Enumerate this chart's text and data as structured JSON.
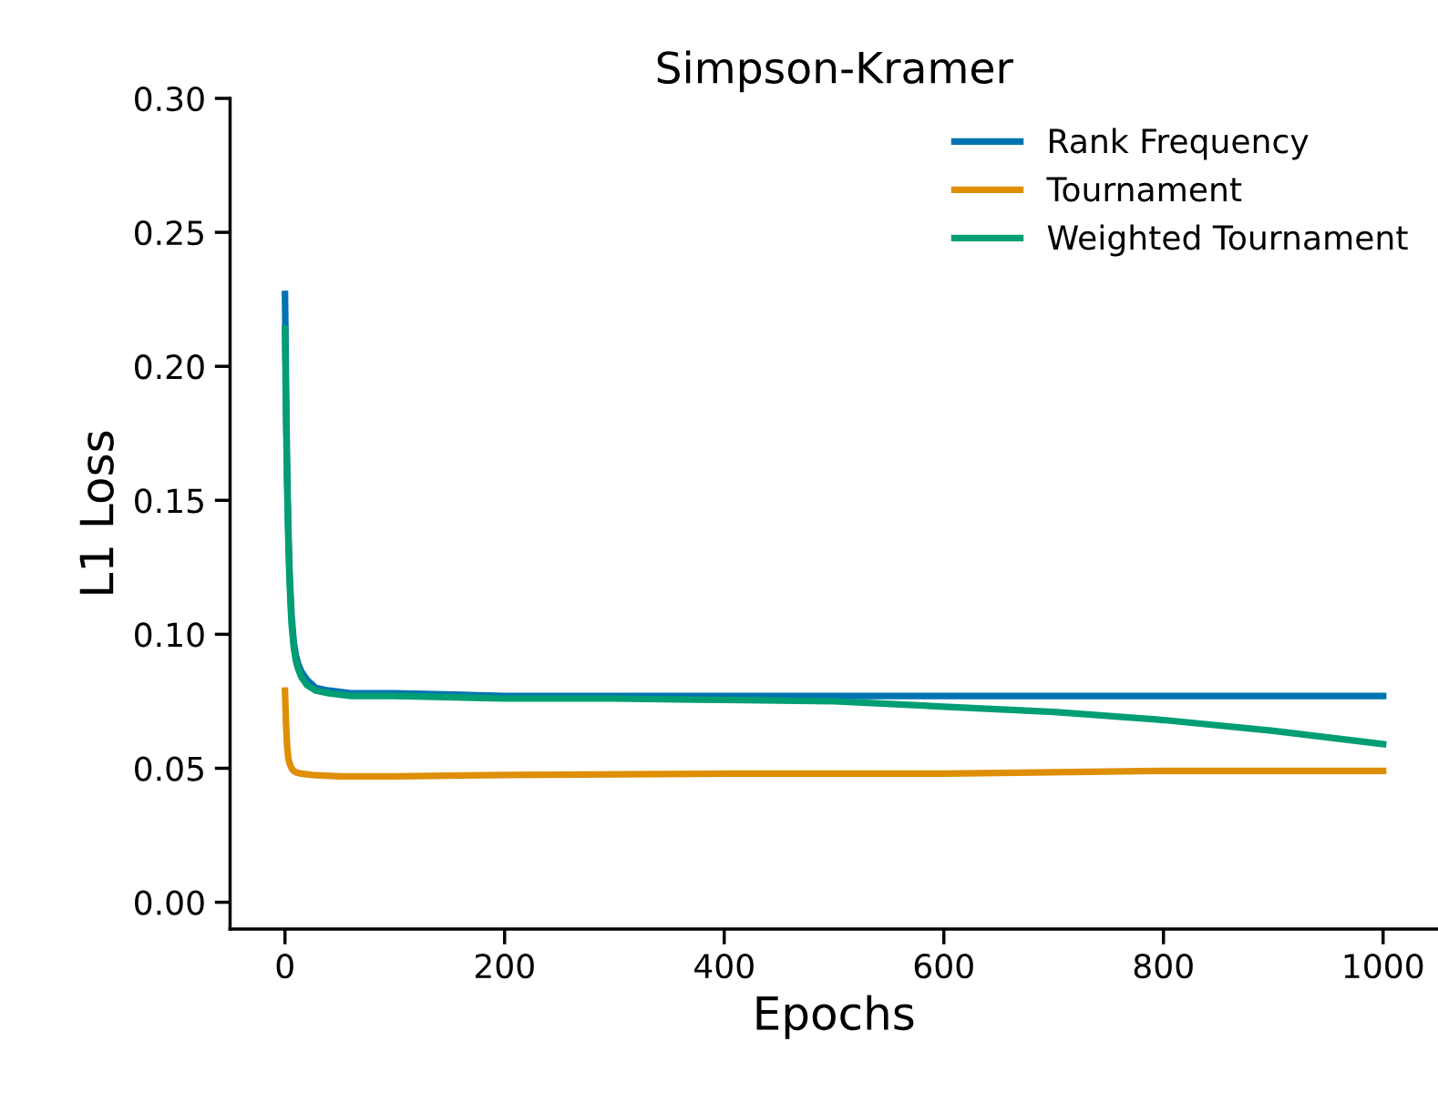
{
  "chart_data": {
    "type": "line",
    "title": "Simpson-Kramer",
    "xlabel": "Epochs",
    "ylabel": "L1 Loss",
    "xlim": [
      -50,
      1050
    ],
    "ylim": [
      -0.01,
      0.3
    ],
    "xticks": [
      0,
      200,
      400,
      600,
      800,
      1000
    ],
    "yticks": [
      {
        "value": 0,
        "label": "0.00"
      },
      {
        "value": 0.05,
        "label": "0.05"
      },
      {
        "value": 0.1,
        "label": "0.10"
      },
      {
        "value": 0.15,
        "label": "0.15"
      },
      {
        "value": 0.2,
        "label": "0.20"
      },
      {
        "value": 0.25,
        "label": "0.25"
      },
      {
        "value": 0.3,
        "label": "0.30"
      }
    ],
    "grid": false,
    "legend": "top right",
    "marker": "none",
    "line_style": "solid",
    "series": [
      {
        "name": "Rank Frequency",
        "color": "#0173b2",
        "x": [
          0,
          1,
          2,
          3,
          4,
          5,
          6,
          8,
          10,
          12,
          15,
          20,
          28,
          40,
          60,
          100,
          200,
          400,
          600,
          800,
          1000
        ],
        "values": [
          0.227,
          0.19,
          0.16,
          0.14,
          0.125,
          0.115,
          0.107,
          0.097,
          0.092,
          0.089,
          0.086,
          0.083,
          0.08,
          0.079,
          0.078,
          0.078,
          0.077,
          0.077,
          0.077,
          0.077,
          0.077
        ]
      },
      {
        "name": "Tournament",
        "color": "#de8f05",
        "x": [
          0,
          1,
          2,
          3,
          4,
          6,
          8,
          10,
          15,
          25,
          50,
          100,
          200,
          400,
          600,
          800,
          1000
        ],
        "values": [
          0.079,
          0.066,
          0.058,
          0.054,
          0.052,
          0.05,
          0.049,
          0.0485,
          0.048,
          0.0475,
          0.047,
          0.047,
          0.0475,
          0.048,
          0.048,
          0.049,
          0.049
        ]
      },
      {
        "name": "Weighted Tournament",
        "color": "#029e73",
        "x": [
          0,
          1,
          2,
          3,
          4,
          5,
          6,
          8,
          10,
          12,
          15,
          20,
          28,
          40,
          60,
          100,
          200,
          300,
          400,
          500,
          600,
          700,
          800,
          900,
          1000
        ],
        "values": [
          0.214,
          0.18,
          0.155,
          0.136,
          0.122,
          0.112,
          0.104,
          0.095,
          0.09,
          0.087,
          0.084,
          0.081,
          0.079,
          0.078,
          0.077,
          0.077,
          0.076,
          0.076,
          0.0755,
          0.075,
          0.073,
          0.071,
          0.068,
          0.064,
          0.059
        ]
      }
    ]
  }
}
